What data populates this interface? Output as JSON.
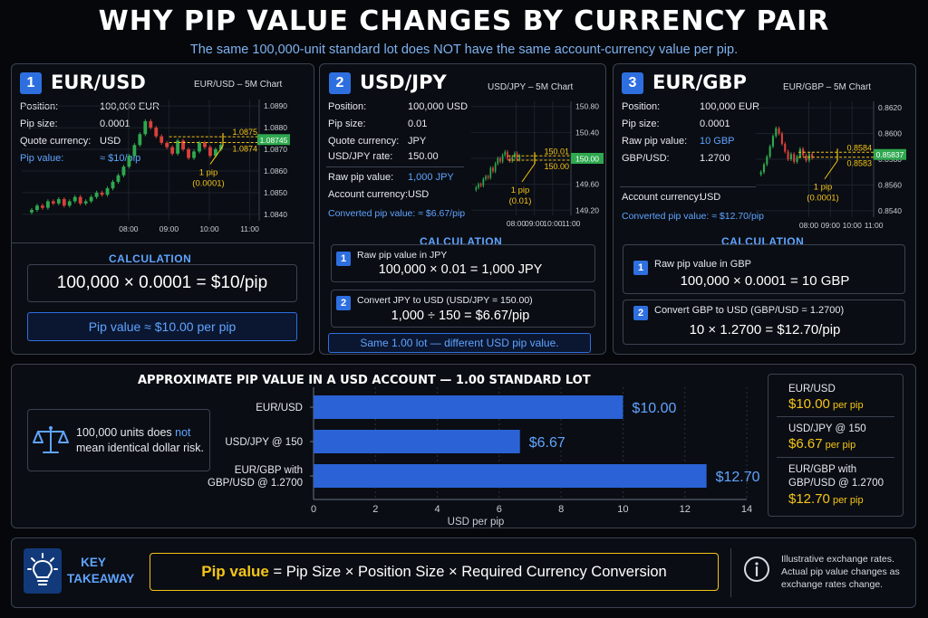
{
  "header": {
    "title": "WHY PIP VALUE CHANGES BY CURRENCY PAIR",
    "subtitle": "The same 100,000-unit standard lot does NOT have the same account-currency value per pip."
  },
  "panels": [
    {
      "num": "1",
      "pair": "EUR/USD",
      "chart_title": "EUR/USD – 5M Chart",
      "rows": [
        {
          "label": "Position:",
          "value": "100,000 EUR"
        },
        {
          "label": "Pip size:",
          "value": "0.0001"
        },
        {
          "label": "Quote currency:",
          "value": "USD"
        },
        {
          "label": "Pip value:",
          "value": "≈ $10/pip"
        }
      ],
      "calc_head": "CALCULATION",
      "formula": "100,000  ×  0.0001  =  $10/pip",
      "result": "Pip value  ≈  $10.00 per pip"
    },
    {
      "num": "2",
      "pair": "USD/JPY",
      "chart_title": "USD/JPY – 5M Chart",
      "rows": [
        {
          "label": "Position:",
          "value": "100,000 USD"
        },
        {
          "label": "Pip size:",
          "value": "0.01"
        },
        {
          "label": "Quote currency:",
          "value": "JPY"
        },
        {
          "label": "USD/JPY rate:",
          "value": "150.00"
        },
        {
          "label": "Raw pip value:",
          "value": "1,000 JPY"
        },
        {
          "label": "Account currency:",
          "value": "USD"
        },
        {
          "label": "Converted pip value: ≈ $6.67/pip",
          "value": ""
        }
      ],
      "calc_head": "CALCULATION",
      "step1_label": "Raw pip value in JPY",
      "step1_formula": "100,000 × 0.01 = 1,000 JPY",
      "step2_label": "Convert JPY to USD (USD/JPY = 150.00)",
      "step2_formula": "1,000  ÷  150  =  $6.67/pip",
      "result": "Same 1.00 lot — different USD pip value."
    },
    {
      "num": "3",
      "pair": "EUR/GBP",
      "chart_title": "EUR/GBP – 5M Chart",
      "rows": [
        {
          "label": "Position:",
          "value": "100,000 EUR"
        },
        {
          "label": "Pip size:",
          "value": "0.0001"
        },
        {
          "label": "Raw pip value:",
          "value": "10 GBP"
        },
        {
          "label": "GBP/USD:",
          "value": "1.2700"
        },
        {
          "label": "Account currency:",
          "value": "USD"
        },
        {
          "label": "Converted pip value: ≈ $12.70/pip",
          "value": ""
        }
      ],
      "calc_head": "CALCULATION",
      "step1_label": "Raw pip value in GBP",
      "step1_formula": "100,000  ×  0.0001  =  10 GBP",
      "step2_label": "Convert GBP to USD (GBP/USD = 1.2700)",
      "step2_formula": "10  ×  1.2700  =  $12.70/pip"
    }
  ],
  "chart_data": [
    {
      "type": "line",
      "title": "EUR/USD – 5M Chart",
      "x_ticks": [
        "08:00",
        "09:00",
        "10:00",
        "11:00"
      ],
      "y_ticks": [
        "1.0890",
        "1.0880",
        "1.0870",
        "1.0860",
        "1.0850",
        "1.0840"
      ],
      "ylim": [
        1.0837,
        1.0893
      ],
      "close": [
        1.0842,
        1.0844,
        1.0843,
        1.0846,
        1.0845,
        1.0847,
        1.0844,
        1.0846,
        1.0848,
        1.0845,
        1.0846,
        1.0848,
        1.085,
        1.0849,
        1.0852,
        1.0855,
        1.0858,
        1.0862,
        1.0867,
        1.0872,
        1.0877,
        1.0883,
        1.088,
        1.0876,
        1.0873,
        1.0871,
        1.0868,
        1.0874,
        1.087,
        1.0866,
        1.0869,
        1.0873,
        1.0871,
        1.0867,
        1.087,
        1.0872
      ],
      "pip_levels": [
        "1.0875",
        "1.0874"
      ],
      "pip_level_values": [
        1.0875,
        1.0874
      ],
      "price_tag": "1.08745",
      "price_tag_value": 1.08745,
      "annotation": "1 pip\n(0.0001)"
    },
    {
      "type": "line",
      "title": "USD/JPY – 5M Chart",
      "x_ticks": [
        "08:00",
        "09:00",
        "10:00",
        "11:00"
      ],
      "y_ticks": [
        "150.80",
        "150.40",
        "150.00",
        "149.60",
        "149.20"
      ],
      "ylim": [
        149.12,
        150.88
      ],
      "close": [
        149.55,
        149.6,
        149.58,
        149.68,
        149.72,
        149.7,
        149.85,
        149.8,
        149.92,
        150.0,
        149.95,
        150.05,
        150.1,
        150.0,
        149.96,
        150.02,
        150.08,
        149.98,
        150.04
      ],
      "pip_levels": [
        "150.01",
        "150.00"
      ],
      "pip_level_values": [
        150.01,
        150.0
      ],
      "price_tag": "150.00",
      "price_tag_value": 150.0,
      "annotation": "1 pip\n(0.01)"
    },
    {
      "type": "line",
      "title": "EUR/GBP – 5M Chart",
      "x_ticks": [
        "08:00",
        "09:00",
        "10:00",
        "11:00"
      ],
      "y_ticks": [
        "0.8620",
        "0.8600",
        "0.8580",
        "0.8560",
        "0.8540"
      ],
      "ylim": [
        0.8535,
        0.8625
      ],
      "close": [
        0.857,
        0.8576,
        0.8582,
        0.859,
        0.8598,
        0.8604,
        0.86,
        0.8592,
        0.8586,
        0.858,
        0.8584,
        0.8578,
        0.8582,
        0.8588,
        0.8583,
        0.8579,
        0.8584,
        0.8581
      ],
      "pip_levels": [
        "0.8584",
        "0.8583"
      ],
      "pip_level_values": [
        0.8584,
        0.8583
      ],
      "price_tag": "0.85837",
      "price_tag_value": 0.85837,
      "annotation": "1 pip\n(0.0001)"
    },
    {
      "type": "bar",
      "orientation": "horizontal",
      "title": "APPROXIMATE PIP VALUE IN A USD ACCOUNT — 1.00 STANDARD LOT",
      "categories": [
        "EUR/USD",
        "USD/JPY @ 150",
        "EUR/GBP with\nGBP/USD @ 1.2700"
      ],
      "values": [
        10.0,
        6.67,
        12.7
      ],
      "value_labels": [
        "$10.00",
        "$6.67",
        "$12.70"
      ],
      "xlabel": "USD per pip",
      "xlim": [
        0,
        14
      ],
      "x_ticks": [
        "0",
        "2",
        "4",
        "6",
        "8",
        "10",
        "12",
        "14"
      ],
      "color": "#2b63d6"
    }
  ],
  "risk_note": {
    "line1_prefix": "100,000 units does ",
    "line1_emph": "not",
    "line2": "mean identical dollar risk."
  },
  "summary": [
    {
      "name": "EUR/USD",
      "value": "$10.00",
      "unit": " per pip"
    },
    {
      "name": "USD/JPY @ 150",
      "value": "$6.67",
      "unit": " per pip"
    },
    {
      "name": "EUR/GBP with\nGBP/USD @ 1.2700",
      "value": "$12.70",
      "unit": " per pip"
    }
  ],
  "takeaway": {
    "title": "KEY\nTAKEAWAY",
    "formula_lead": "Pip value",
    "formula_rest": " =  Pip Size  ×  Position Size  ×  Required Currency Conversion",
    "note": "Illustrative exchange rates.\nActual pip value changes as\nexchange rates change."
  },
  "colors": {
    "accent": "#2e6fe0",
    "highlight": "#f5c518",
    "up": "#2fa84f",
    "down": "#d9403a"
  }
}
